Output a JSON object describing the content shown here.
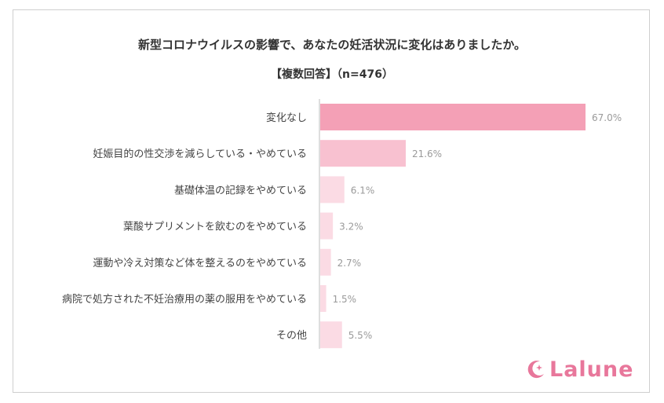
{
  "chart_data": {
    "type": "bar",
    "orientation": "horizontal",
    "title": "新型コロナウイルスの影響で、あなたの妊活状況に変化はありましたか。",
    "subtitle": "【複数回答】（n=476）",
    "categories": [
      "変化なし",
      "妊娠目的の性交渉を減らしている・やめている",
      "基礎体温の記録をやめている",
      "葉酸サプリメントを飲むのをやめている",
      "運動や冷え対策など体を整えるのをやめている",
      "病院で処方された不妊治療用の薬の服用をやめている",
      "その他"
    ],
    "values": [
      67.0,
      21.6,
      6.1,
      3.2,
      2.7,
      1.5,
      5.5
    ],
    "value_labels": [
      "67.0%",
      "21.6%",
      "6.1%",
      "3.2%",
      "2.7%",
      "1.5%",
      "5.5%"
    ],
    "xlim": [
      0,
      67.0
    ],
    "grid": false,
    "colors": [
      "#f4a0b6",
      "#f8c1d0",
      "#fbdbe4",
      "#fbdbe4",
      "#fbdbe4",
      "#fbdbe4",
      "#fbdbe4"
    ]
  },
  "logo": {
    "text": "Lalune",
    "color": "#e8779b"
  }
}
